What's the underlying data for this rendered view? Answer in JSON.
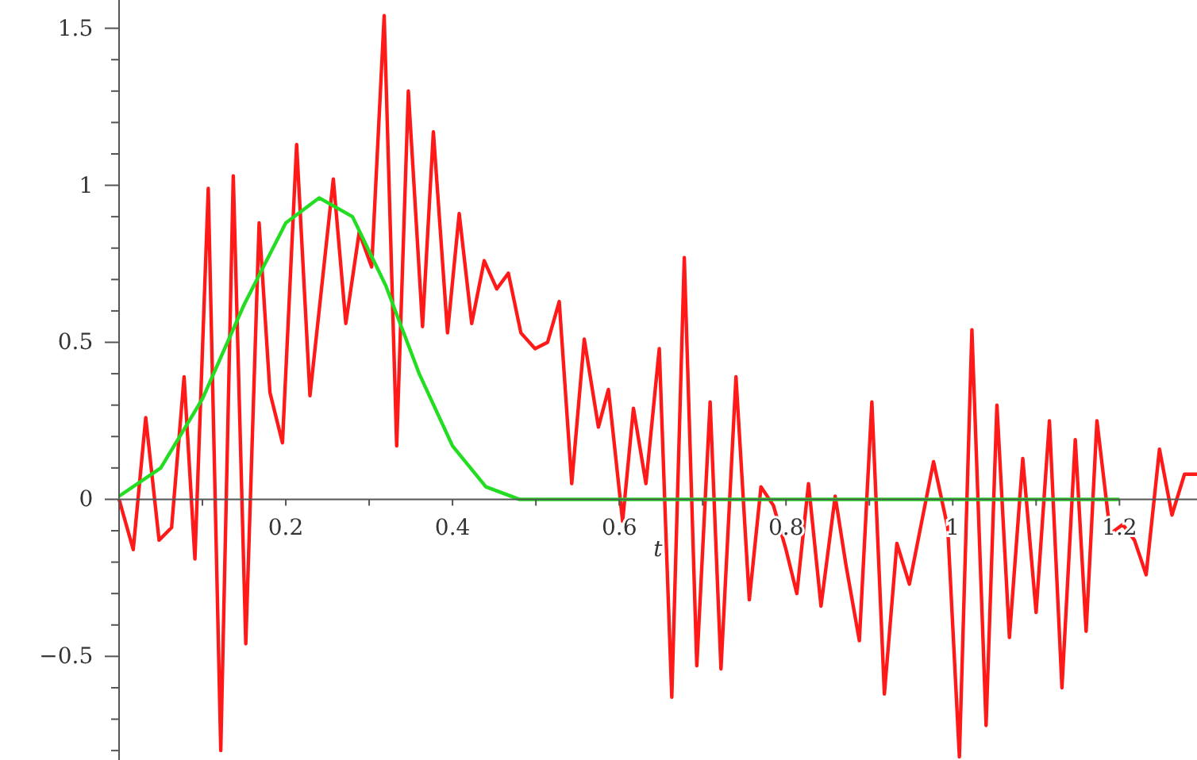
{
  "chart_data": {
    "type": "line",
    "xlabel": "t",
    "xlim": [
      0,
      1.293
    ],
    "ylim": [
      -0.83,
      1.59
    ],
    "xticks": [
      {
        "value": 0.1,
        "label": null
      },
      0.2,
      {
        "value": 0.3,
        "label": null
      },
      0.4,
      {
        "value": 0.5,
        "label": null
      },
      0.6,
      {
        "value": 0.7,
        "label": null
      },
      0.8,
      {
        "value": 0.9,
        "label": null
      },
      1,
      {
        "value": 1.1,
        "label": null
      },
      1.2
    ],
    "yticks": [
      {
        "value": -0.8,
        "label": null
      },
      {
        "value": -0.7,
        "label": null
      },
      {
        "value": -0.6,
        "label": null
      },
      {
        "value": -0.5,
        "label": "−0.5"
      },
      {
        "value": -0.4,
        "label": null
      },
      {
        "value": -0.3,
        "label": null
      },
      {
        "value": -0.2,
        "label": null
      },
      {
        "value": -0.1,
        "label": null
      },
      0,
      {
        "value": 0.1,
        "label": null
      },
      {
        "value": 0.2,
        "label": null
      },
      {
        "value": 0.3,
        "label": null
      },
      {
        "value": 0.4,
        "label": null
      },
      0.5,
      {
        "value": 0.6,
        "label": null
      },
      {
        "value": 0.7,
        "label": null
      },
      {
        "value": 0.8,
        "label": null
      },
      {
        "value": 0.9,
        "label": null
      },
      1,
      {
        "value": 1.1,
        "label": null
      },
      {
        "value": 1.2,
        "label": null
      },
      {
        "value": 1.3,
        "label": null
      },
      {
        "value": 1.4,
        "label": null
      },
      1.5
    ],
    "series": [
      {
        "color": "#ff1a1a",
        "x": [
          0,
          0.017,
          0.032,
          0.048,
          0.063,
          0.078,
          0.091,
          0.107,
          0.122,
          0.137,
          0.152,
          0.168,
          0.181,
          0.196,
          0.213,
          0.229,
          0.257,
          0.272,
          0.288,
          0.303,
          0.318,
          0.333,
          0.347,
          0.364,
          0.377,
          0.394,
          0.408,
          0.423,
          0.438,
          0.453,
          0.467,
          0.482,
          0.499,
          0.514,
          0.528,
          0.543,
          0.558,
          0.575,
          0.587,
          0.604,
          0.617,
          0.632,
          0.648,
          0.663,
          0.678,
          0.693,
          0.709,
          0.722,
          0.74,
          0.756,
          0.77,
          0.785,
          0.8,
          0.813,
          0.827,
          0.842,
          0.859,
          0.872,
          0.888,
          0.903,
          0.918,
          0.933,
          0.948,
          0.977,
          0.994,
          1.008,
          1.023,
          1.04,
          1.053,
          1.068,
          1.084,
          1.1,
          1.116,
          1.131,
          1.147,
          1.16,
          1.173,
          1.189,
          1.204,
          1.218,
          1.232,
          1.248,
          1.263,
          1.278,
          1.293
        ],
        "values": [
          0,
          -0.16,
          0.26,
          -0.13,
          -0.09,
          0.39,
          -0.19,
          0.99,
          -0.8,
          1.03,
          -0.46,
          0.88,
          0.34,
          0.18,
          1.13,
          0.33,
          1.02,
          0.56,
          0.85,
          0.74,
          1.54,
          0.17,
          1.3,
          0.55,
          1.17,
          0.53,
          0.91,
          0.56,
          0.76,
          0.67,
          0.72,
          0.53,
          0.48,
          0.5,
          0.63,
          0.05,
          0.51,
          0.23,
          0.35,
          -0.07,
          0.29,
          0.05,
          0.48,
          -0.63,
          0.77,
          -0.53,
          0.31,
          -0.54,
          0.39,
          -0.32,
          0.04,
          -0.02,
          -0.16,
          -0.3,
          0.05,
          -0.34,
          0.01,
          -0.21,
          -0.45,
          0.31,
          -0.62,
          -0.14,
          -0.27,
          0.12,
          -0.09,
          -0.82,
          0.54,
          -0.72,
          0.3,
          -0.44,
          0.13,
          -0.36,
          0.25,
          -0.6,
          0.19,
          -0.42,
          0.25,
          -0.11,
          -0.08,
          -0.13,
          -0.24,
          0.16,
          -0.05,
          0.08,
          0.08
        ]
      },
      {
        "color": "#22dd22",
        "x": [
          0,
          0.05,
          0.1,
          0.15,
          0.2,
          0.24,
          0.28,
          0.32,
          0.36,
          0.4,
          0.44,
          0.48,
          0.6,
          0.8,
          1,
          1.2
        ],
        "values": [
          0.01,
          0.1,
          0.32,
          0.62,
          0.88,
          0.96,
          0.9,
          0.68,
          0.4,
          0.17,
          0.04,
          0,
          0,
          0,
          0,
          0
        ]
      }
    ]
  }
}
